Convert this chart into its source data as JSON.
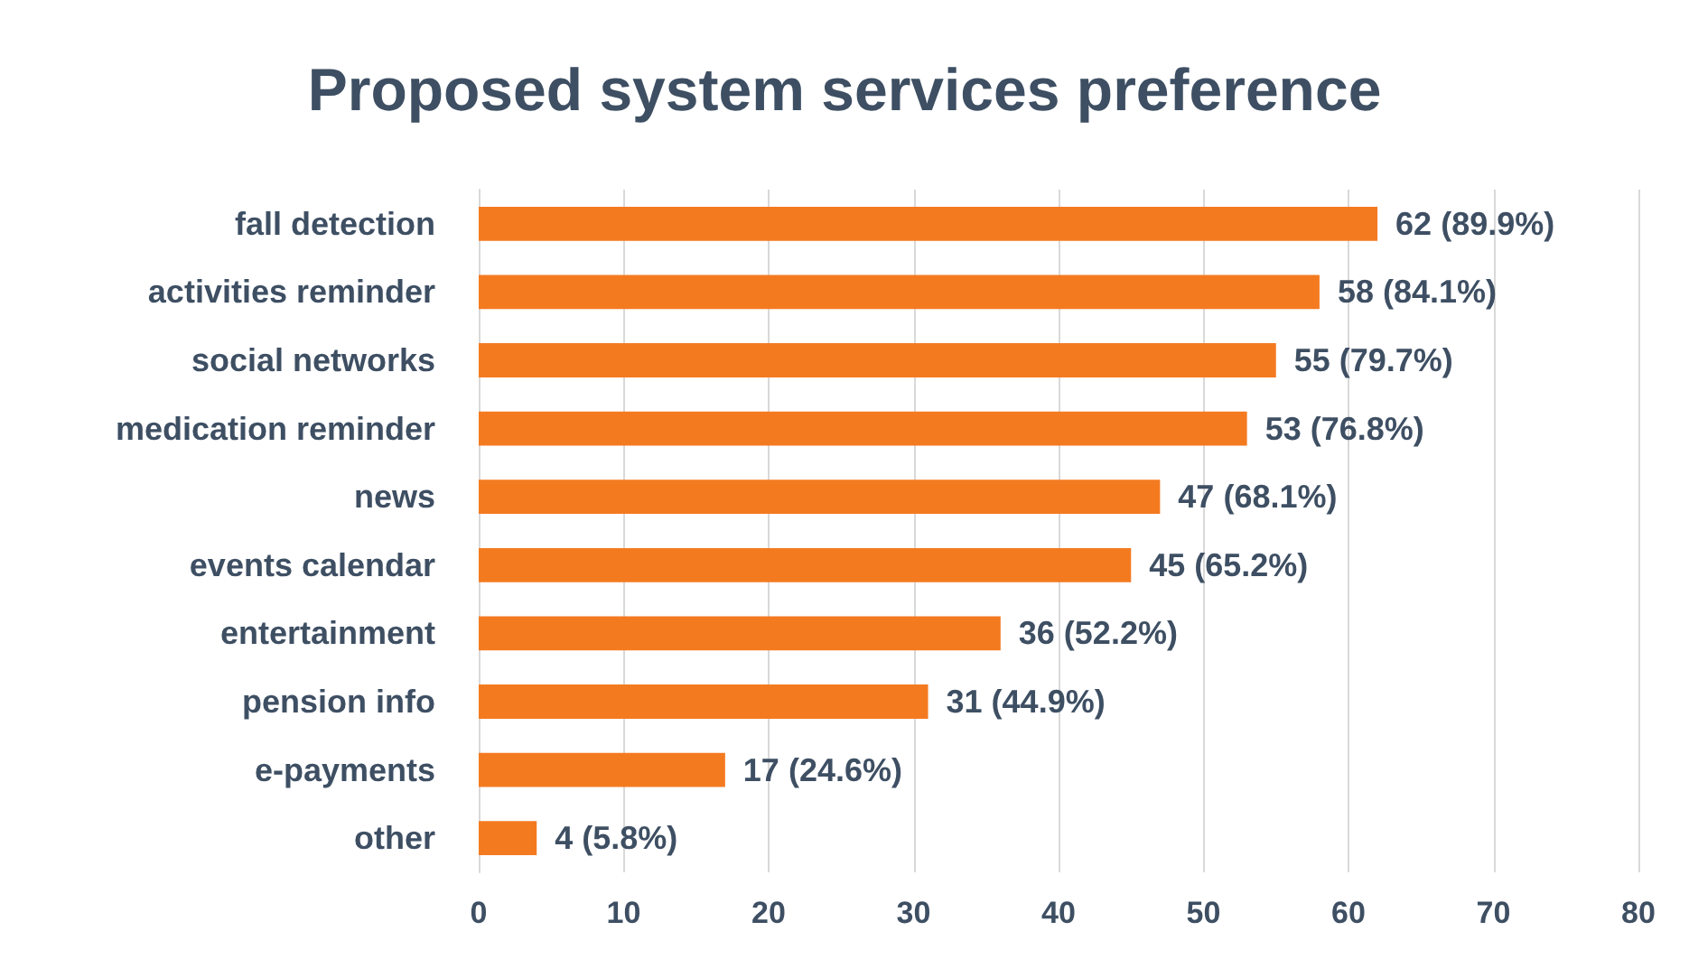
{
  "chart_data": {
    "type": "bar",
    "orientation": "horizontal",
    "title": "Proposed system services preference",
    "categories": [
      "fall detection",
      "activities reminder",
      "social networks",
      "medication reminder",
      "news",
      "events calendar",
      "entertainment",
      "pension info",
      "e-payments",
      "other"
    ],
    "values": [
      62,
      58,
      55,
      53,
      47,
      45,
      36,
      31,
      17,
      4
    ],
    "value_labels": [
      "62 (89.9%)",
      "58 (84.1%)",
      "55 (79.7%)",
      "53 (76.8%)",
      "47 (68.1%)",
      "45 (65.2%)",
      "36 (52.2%)",
      "31 (44.9%)",
      "17 (24.6%)",
      "4 (5.8%)"
    ],
    "color": "#f47a20",
    "xlim": [
      0,
      80
    ],
    "xticks": [
      0,
      10,
      20,
      30,
      40,
      50,
      60,
      70,
      80
    ],
    "grid": "x"
  }
}
